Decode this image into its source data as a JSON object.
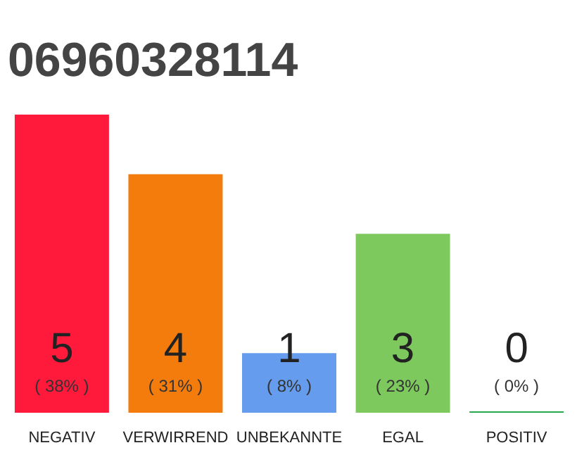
{
  "chart_data": {
    "type": "bar",
    "title": "06960328114",
    "categories": [
      "NEGATIV",
      "VERWIRREND",
      "UNBEKANNTE",
      "EGAL",
      "POSITIV"
    ],
    "values": [
      5,
      4,
      1,
      3,
      0
    ],
    "colors": [
      "#ff1a3c",
      "#f47c0c",
      "#659ced",
      "#7dc95e",
      "#2ba84a"
    ],
    "data_labels": true,
    "annotations": [
      "( 38% )",
      "( 31% )",
      "( 8% )",
      "( 23% )",
      "( 0% )"
    ],
    "grid": false
  }
}
